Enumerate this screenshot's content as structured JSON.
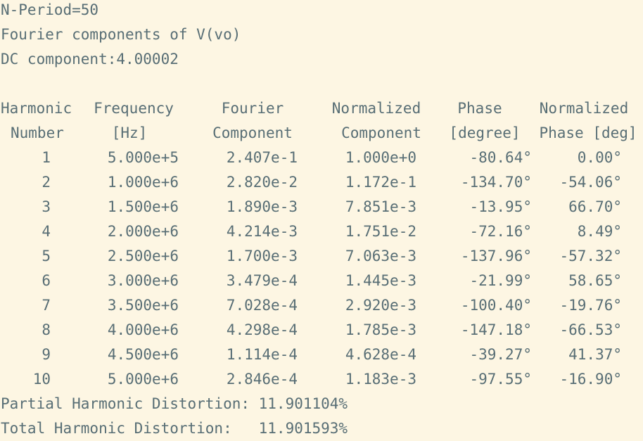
{
  "header": {
    "n_period": "N-Period=50",
    "title": "Fourier components of V(vo)",
    "dc": "DC component:4.00002"
  },
  "table": {
    "headers_row1": [
      "Harmonic",
      "Frequency",
      "Fourier",
      "Normalized",
      "Phase",
      "Normalized"
    ],
    "headers_row2": [
      "Number",
      "[Hz]",
      "Component",
      "Component",
      "[degree]",
      "Phase [deg]"
    ],
    "rows": [
      [
        "1",
        "5.000e+5",
        "2.407e-1",
        "1.000e+0",
        "-80.64°",
        "0.00°"
      ],
      [
        "2",
        "1.000e+6",
        "2.820e-2",
        "1.172e-1",
        "-134.70°",
        "-54.06°"
      ],
      [
        "3",
        "1.500e+6",
        "1.890e-3",
        "7.851e-3",
        "-13.95°",
        "66.70°"
      ],
      [
        "4",
        "2.000e+6",
        "4.214e-3",
        "1.751e-2",
        "-72.16°",
        "8.49°"
      ],
      [
        "5",
        "2.500e+6",
        "1.700e-3",
        "7.063e-3",
        "-137.96°",
        "-57.32°"
      ],
      [
        "6",
        "3.000e+6",
        "3.479e-4",
        "1.445e-3",
        "-21.99°",
        "58.65°"
      ],
      [
        "7",
        "3.500e+6",
        "7.028e-4",
        "2.920e-3",
        "-100.40°",
        "-19.76°"
      ],
      [
        "8",
        "4.000e+6",
        "4.298e-4",
        "1.785e-3",
        "-147.18°",
        "-66.53°"
      ],
      [
        "9",
        "4.500e+6",
        "1.114e-4",
        "4.628e-4",
        "-39.27°",
        "41.37°"
      ],
      [
        "10",
        "5.000e+6",
        "2.846e-4",
        "1.183e-3",
        "-97.55°",
        "-16.90°"
      ]
    ]
  },
  "footer": {
    "partial_hd": "Partial Harmonic Distortion: 11.901104%",
    "total_hd": "Total Harmonic Distortion:   11.901593%"
  }
}
